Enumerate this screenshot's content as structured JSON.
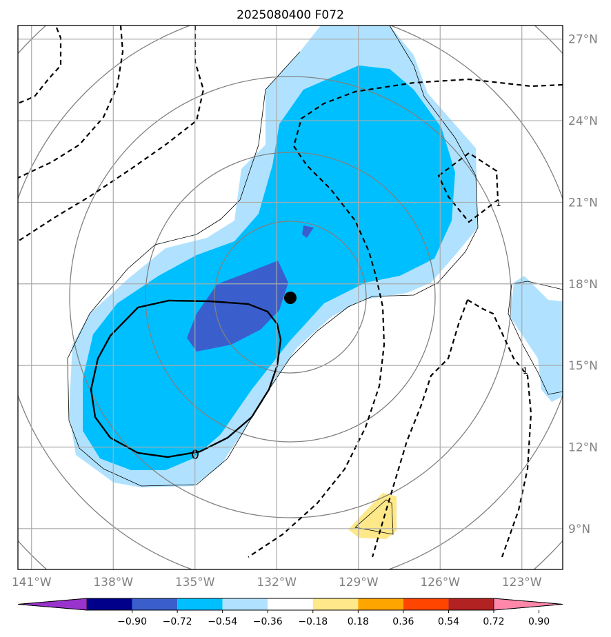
{
  "chart_data": {
    "type": "map-contour",
    "title": "2025080400 F072",
    "lon_ticks": [
      "141°W",
      "138°W",
      "135°W",
      "132°W",
      "129°W",
      "126°W",
      "123°W"
    ],
    "lat_ticks": [
      "27°N",
      "24°N",
      "21°N",
      "18°N",
      "15°N",
      "12°N",
      "9°N"
    ],
    "lon_values": [
      -141,
      -138,
      -135,
      -132,
      -129,
      -126,
      -123
    ],
    "lat_values": [
      27,
      24,
      21,
      18,
      15,
      12,
      9
    ],
    "extent": {
      "lon": [
        -141.5,
        -121.5
      ],
      "lat": [
        7.5,
        27.5
      ]
    },
    "center_marker": {
      "lon": -131.5,
      "lat": 17.5
    },
    "grid": true,
    "colorbar": {
      "levels": [
        -0.9,
        -0.72,
        -0.54,
        -0.36,
        -0.18,
        0.18,
        0.36,
        0.54,
        0.72,
        0.9
      ],
      "labels": [
        "−0.90",
        "−0.72",
        "−0.54",
        "−0.36",
        "−0.18",
        "0.18",
        "0.36",
        "0.54",
        "0.72",
        "0.90"
      ],
      "colors": [
        "#9933cc",
        "#00008b",
        "#3a5fcd",
        "#00bfff",
        "#b0e2ff",
        "#ffffff",
        "#ffe88a",
        "#ffa500",
        "#ff4500",
        "#b22222",
        "#ff88aa"
      ],
      "extend": "both"
    },
    "contour_labels": [
      "1",
      "1",
      "0"
    ]
  }
}
